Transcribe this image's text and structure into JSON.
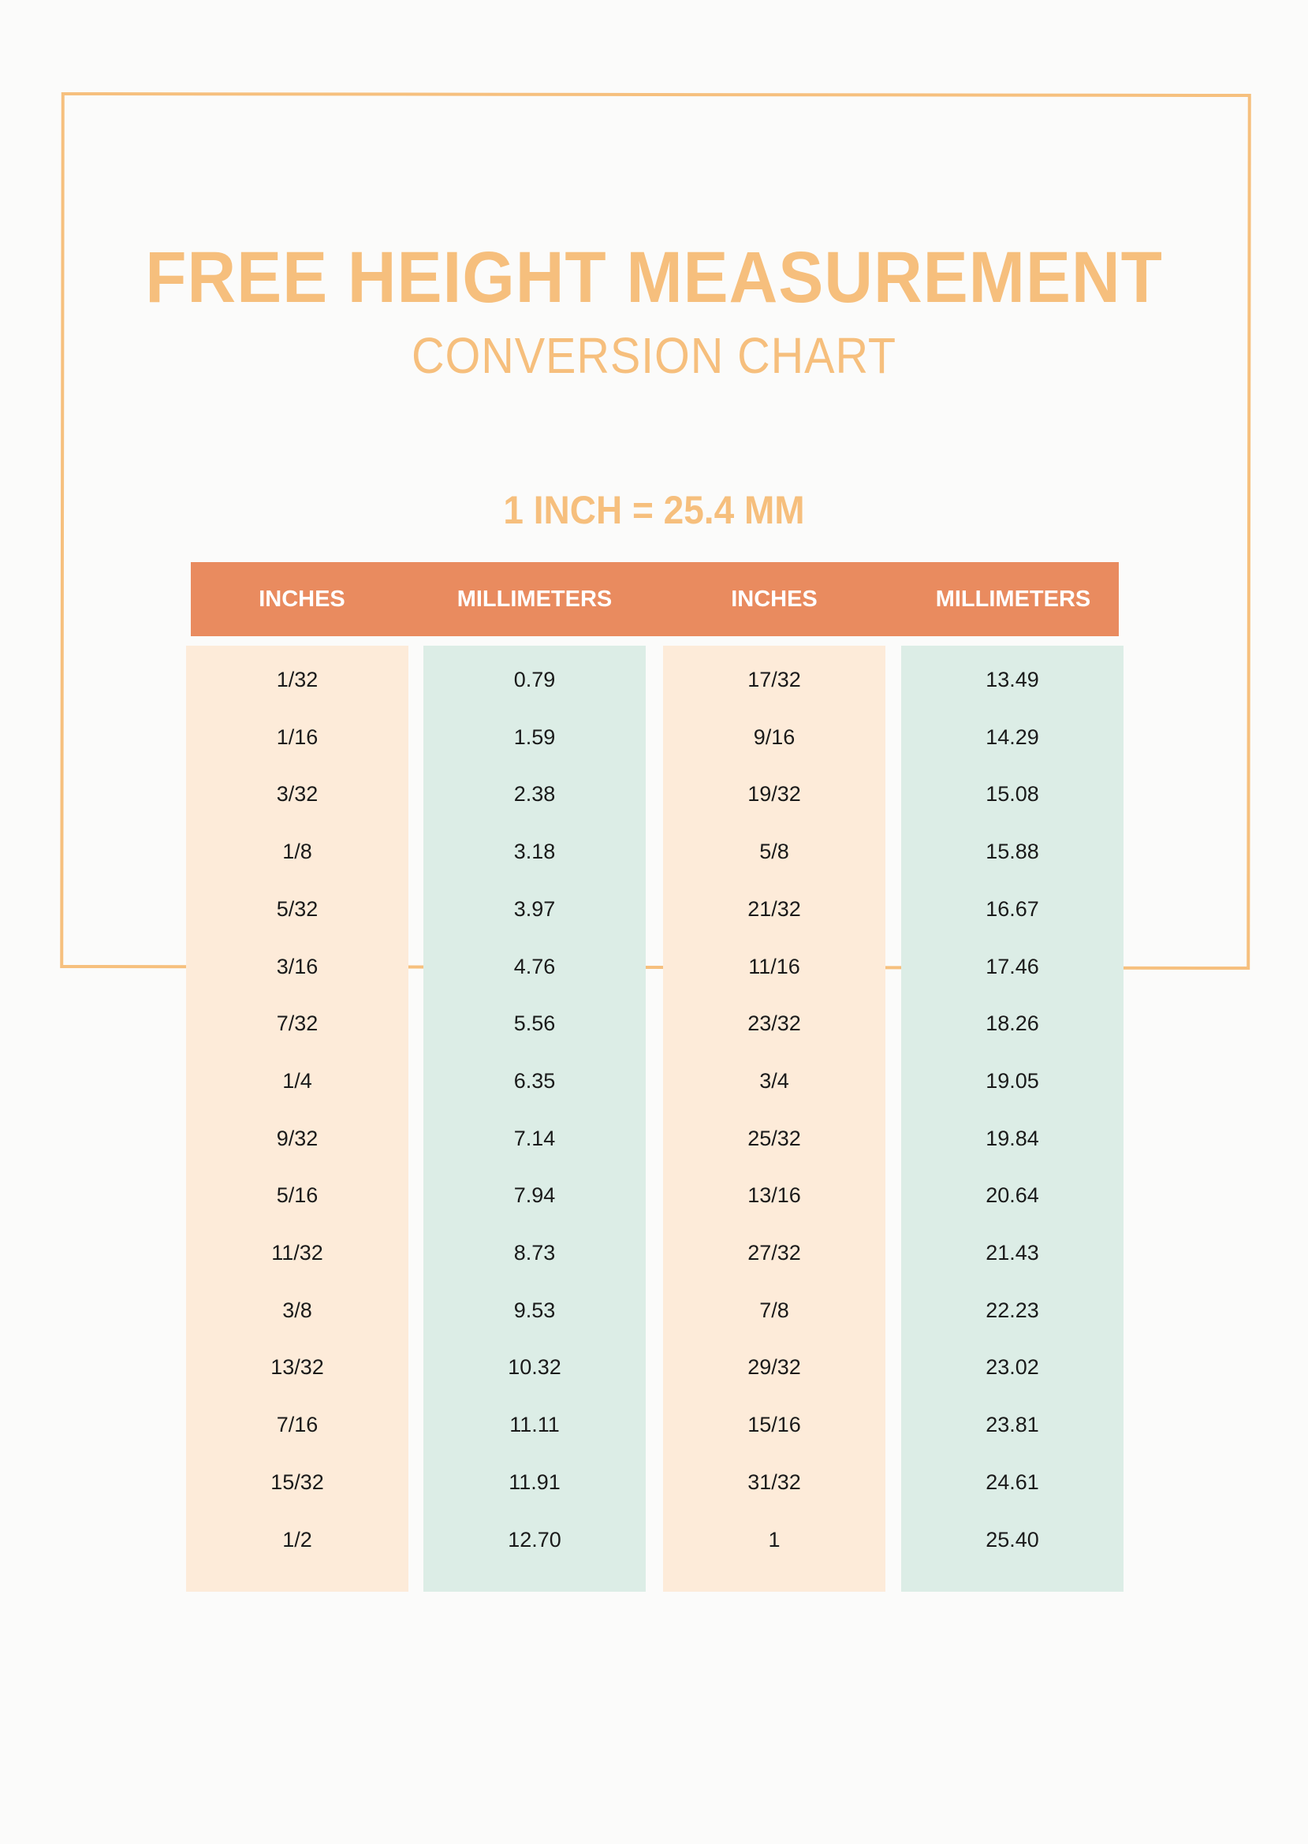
{
  "title": "FREE HEIGHT MEASUREMENT",
  "subtitle": "CONVERSION CHART",
  "conversion_note": "1 INCH = 25.4 MM",
  "colors": {
    "frame": "#f6c07e",
    "title": "#f6bf7d",
    "header": "#e98b5f",
    "inches_column": "#fdebd9",
    "mm_column": "#dcede6"
  },
  "table": {
    "headers": [
      "INCHES",
      "MILLIMETERS",
      "INCHES",
      "MILLIMETERS"
    ],
    "columns": [
      [
        "1/32",
        "1/16",
        "3/32",
        "1/8",
        "5/32",
        "3/16",
        "7/32",
        "1/4",
        "9/32",
        "5/16",
        "11/32",
        "3/8",
        "13/32",
        "7/16",
        "15/32",
        "1/2"
      ],
      [
        "0.79",
        "1.59",
        "2.38",
        "3.18",
        "3.97",
        "4.76",
        "5.56",
        "6.35",
        "7.14",
        "7.94",
        "8.73",
        "9.53",
        "10.32",
        "11.11",
        "11.91",
        "12.70"
      ],
      [
        "17/32",
        "9/16",
        "19/32",
        "5/8",
        "21/32",
        "11/16",
        "23/32",
        "3/4",
        "25/32",
        "13/16",
        "27/32",
        "7/8",
        "29/32",
        "15/16",
        "31/32",
        "1"
      ],
      [
        "13.49",
        "14.29",
        "15.08",
        "15.88",
        "16.67",
        "17.46",
        "18.26",
        "19.05",
        "19.84",
        "20.64",
        "21.43",
        "22.23",
        "23.02",
        "23.81",
        "24.61",
        "25.40"
      ]
    ]
  }
}
